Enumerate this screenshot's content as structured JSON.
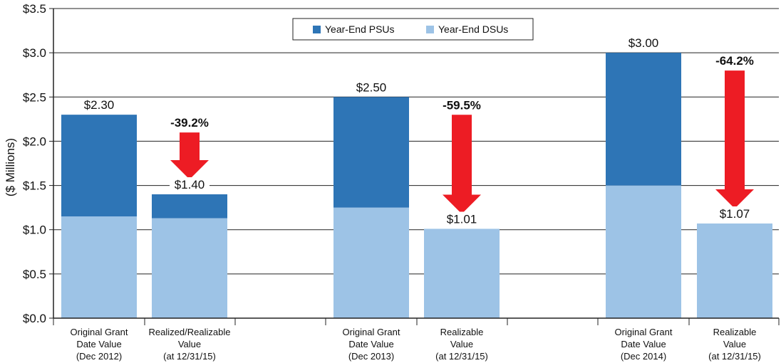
{
  "chart_data": {
    "type": "bar",
    "stacked": true,
    "ylabel": "($ Millions)",
    "ylim": [
      0,
      3.5
    ],
    "yticks": [
      {
        "value": 0.0,
        "label": "$0.0"
      },
      {
        "value": 0.5,
        "label": "$0.5"
      },
      {
        "value": 1.0,
        "label": "$1.0"
      },
      {
        "value": 1.5,
        "label": "$1.5"
      },
      {
        "value": 2.0,
        "label": "$2.0"
      },
      {
        "value": 2.5,
        "label": "$2.5"
      },
      {
        "value": 3.0,
        "label": "$3.0"
      },
      {
        "value": 3.5,
        "label": "$3.5"
      }
    ],
    "grid": true,
    "legend_position": "top-center",
    "categories": [
      [
        "Original Grant",
        "Date Value",
        "(Dec 2012)"
      ],
      [
        "Realized/Realizable",
        "Value",
        "(at 12/31/15)"
      ],
      [
        "Original Grant",
        "Date Value",
        "(Dec 2013)"
      ],
      [
        "Realizable",
        "Value",
        "(at 12/31/15)"
      ],
      [
        "Original Grant",
        "Date Value",
        "(Dec 2014)"
      ],
      [
        "Realizable",
        "Value",
        "(at 12/31/15)"
      ]
    ],
    "series": [
      {
        "name": "Year-End DSUs",
        "color": "#9DC3E6",
        "values": [
          1.15,
          1.13,
          1.25,
          1.01,
          1.5,
          1.07
        ]
      },
      {
        "name": "Year-End PSUs",
        "color": "#2E75B6",
        "values": [
          1.15,
          0.27,
          1.25,
          0.0,
          1.5,
          0.0
        ]
      }
    ],
    "legend_order": [
      "Year-End PSUs",
      "Year-End DSUs"
    ],
    "totals": [
      "$2.30",
      "$1.40",
      "$2.50",
      "$1.01",
      "$3.00",
      "$1.07"
    ],
    "changes": [
      {
        "target": 1,
        "label": "-39.2%"
      },
      {
        "target": 3,
        "label": "-59.5%"
      },
      {
        "target": 5,
        "label": "-64.2%"
      }
    ],
    "arrow_color": "#ED1C24"
  }
}
